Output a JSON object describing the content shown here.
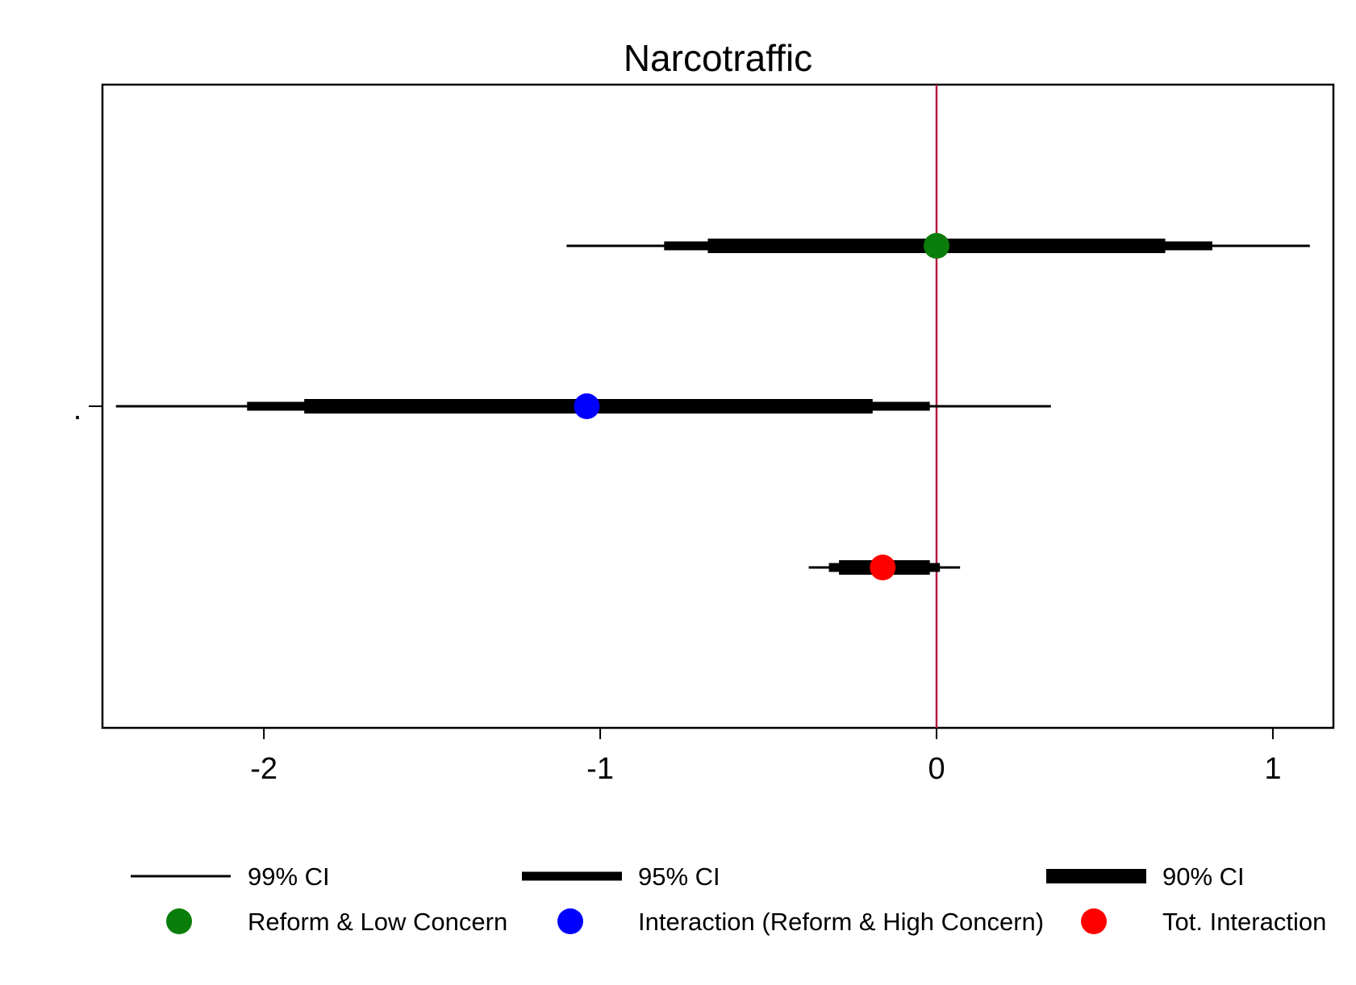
{
  "chart_data": {
    "type": "coefficient_plot",
    "title": "Narcotraffic",
    "xlabel": "",
    "ylabel": "",
    "xlim": [
      -2.48,
      1.18
    ],
    "x_ticks": [
      -2,
      -1,
      0,
      1
    ],
    "x_tick_labels": [
      "-2",
      "-1",
      "0",
      "1"
    ],
    "y_tick_label": ".",
    "reference_line": {
      "x": 0,
      "color": "#b5193c"
    },
    "grid": false,
    "legend_position": "bottom",
    "ci_legend": [
      {
        "label": "99% CI",
        "level": 99
      },
      {
        "label": "95% CI",
        "level": 95
      },
      {
        "label": "90% CI",
        "level": 90
      }
    ],
    "series": [
      {
        "name": "Reform & Low Concern",
        "color": "#0a7d0a",
        "estimate": 0.0,
        "ci90": [
          -0.68,
          0.68
        ],
        "ci95": [
          -0.81,
          0.82
        ],
        "ci99": [
          -1.1,
          1.11
        ]
      },
      {
        "name": "Interaction (Reform & High Concern)",
        "color": "#0000ff",
        "estimate": -1.04,
        "ci90": [
          -1.88,
          -0.19
        ],
        "ci95": [
          -2.05,
          -0.02
        ],
        "ci99": [
          -2.44,
          0.34
        ]
      },
      {
        "name": "Tot. Interaction",
        "color": "#ff0000",
        "estimate": -0.16,
        "ci90": [
          -0.29,
          -0.02
        ],
        "ci95": [
          -0.32,
          0.01
        ],
        "ci99": [
          -0.38,
          0.07
        ]
      }
    ]
  }
}
